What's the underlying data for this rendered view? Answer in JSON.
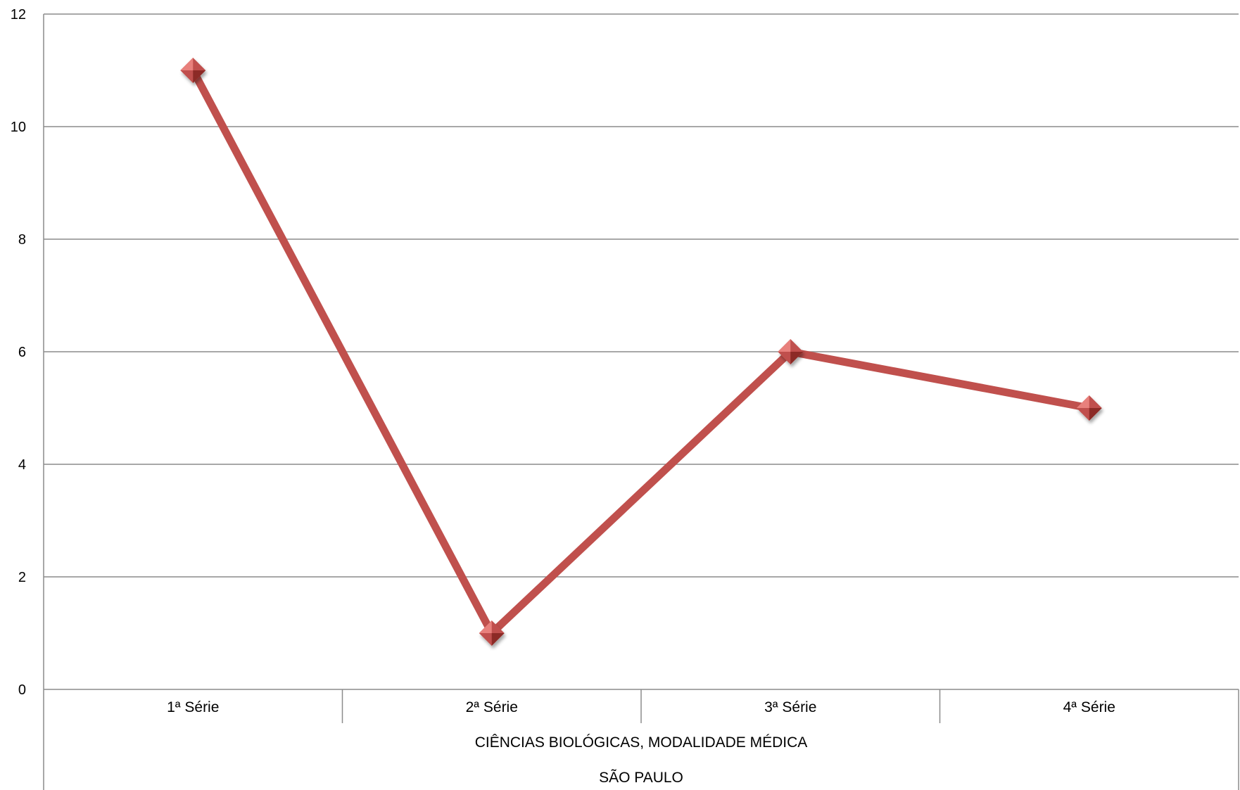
{
  "chart_data": {
    "type": "line",
    "categories": [
      "1ª Série",
      "2ª Série",
      "3ª Série",
      "4ª Série"
    ],
    "series": [
      {
        "values": [
          11,
          1,
          6,
          5
        ]
      }
    ],
    "group_labels": [
      "CIÊNCIAS BIOLÓGICAS, MODALIDADE MÉDICA",
      "SÃO PAULO"
    ],
    "ylim": [
      0,
      12
    ],
    "yticks": [
      0,
      2,
      4,
      6,
      8,
      10,
      12
    ],
    "ytick_labels": [
      "0",
      "2",
      "4",
      "6",
      "8",
      "10",
      "12"
    ],
    "grid": true,
    "line_color": "#c0504d",
    "marker": "diamond",
    "marker_color": "#c0504d",
    "marker_highlight_color": "#e8807c",
    "marker_shadow_color": "#8c2b28",
    "gridline_color": "#8c8c8c"
  }
}
